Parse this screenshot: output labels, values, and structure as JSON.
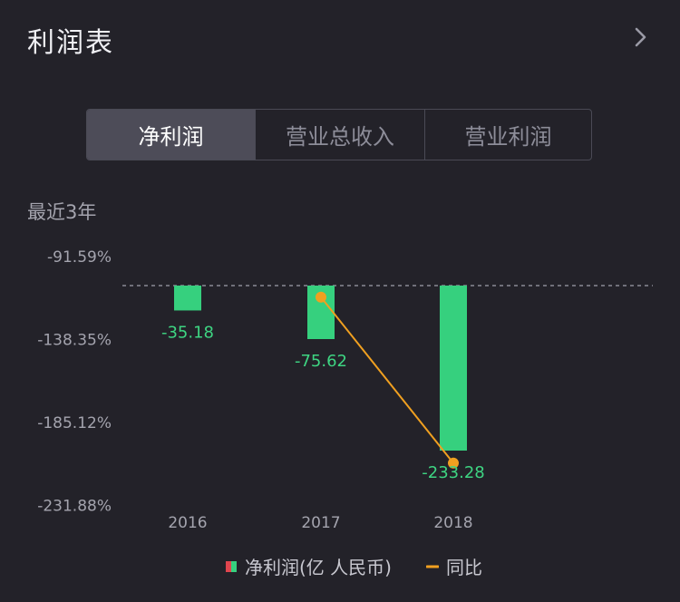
{
  "header": {
    "title": "利润表",
    "chevron_icon": "chevron-right-icon"
  },
  "tabs": [
    {
      "label": "净利润",
      "active": true
    },
    {
      "label": "营业总收入",
      "active": false
    },
    {
      "label": "营业利润",
      "active": false
    }
  ],
  "period_label": "最近3年",
  "legend": {
    "bar_label": "净利润(亿 人民币)",
    "line_label": "同比"
  },
  "colors": {
    "bar": "#36d07e",
    "bar_label": "#3ed582",
    "line": "#f0a020",
    "axis_text": "#a4a4ae",
    "legend_red": "#e0454e",
    "legend_green": "#36d07e"
  },
  "chart_data": {
    "type": "bar",
    "categories": [
      "2016",
      "2017",
      "2018"
    ],
    "series": [
      {
        "name": "净利润(亿 人民币)",
        "type": "bar",
        "values": [
          -35.18,
          -75.62,
          -233.28
        ],
        "value_labels": [
          "-35.18",
          "-75.62",
          "-233.28"
        ]
      },
      {
        "name": "同比",
        "type": "line",
        "values": [
          null,
          -114.95,
          -208.49
        ]
      }
    ],
    "left_axis_ticks": [
      "-91.59%",
      "-138.35%",
      "-185.12%",
      "-231.88%"
    ],
    "left_axis_values": [
      -91.59,
      -138.35,
      -185.12,
      -231.88
    ],
    "bar_ylim": [
      -233.28,
      0
    ],
    "zero_line": "dashed",
    "grid": false,
    "legend_position": "bottom-center"
  }
}
